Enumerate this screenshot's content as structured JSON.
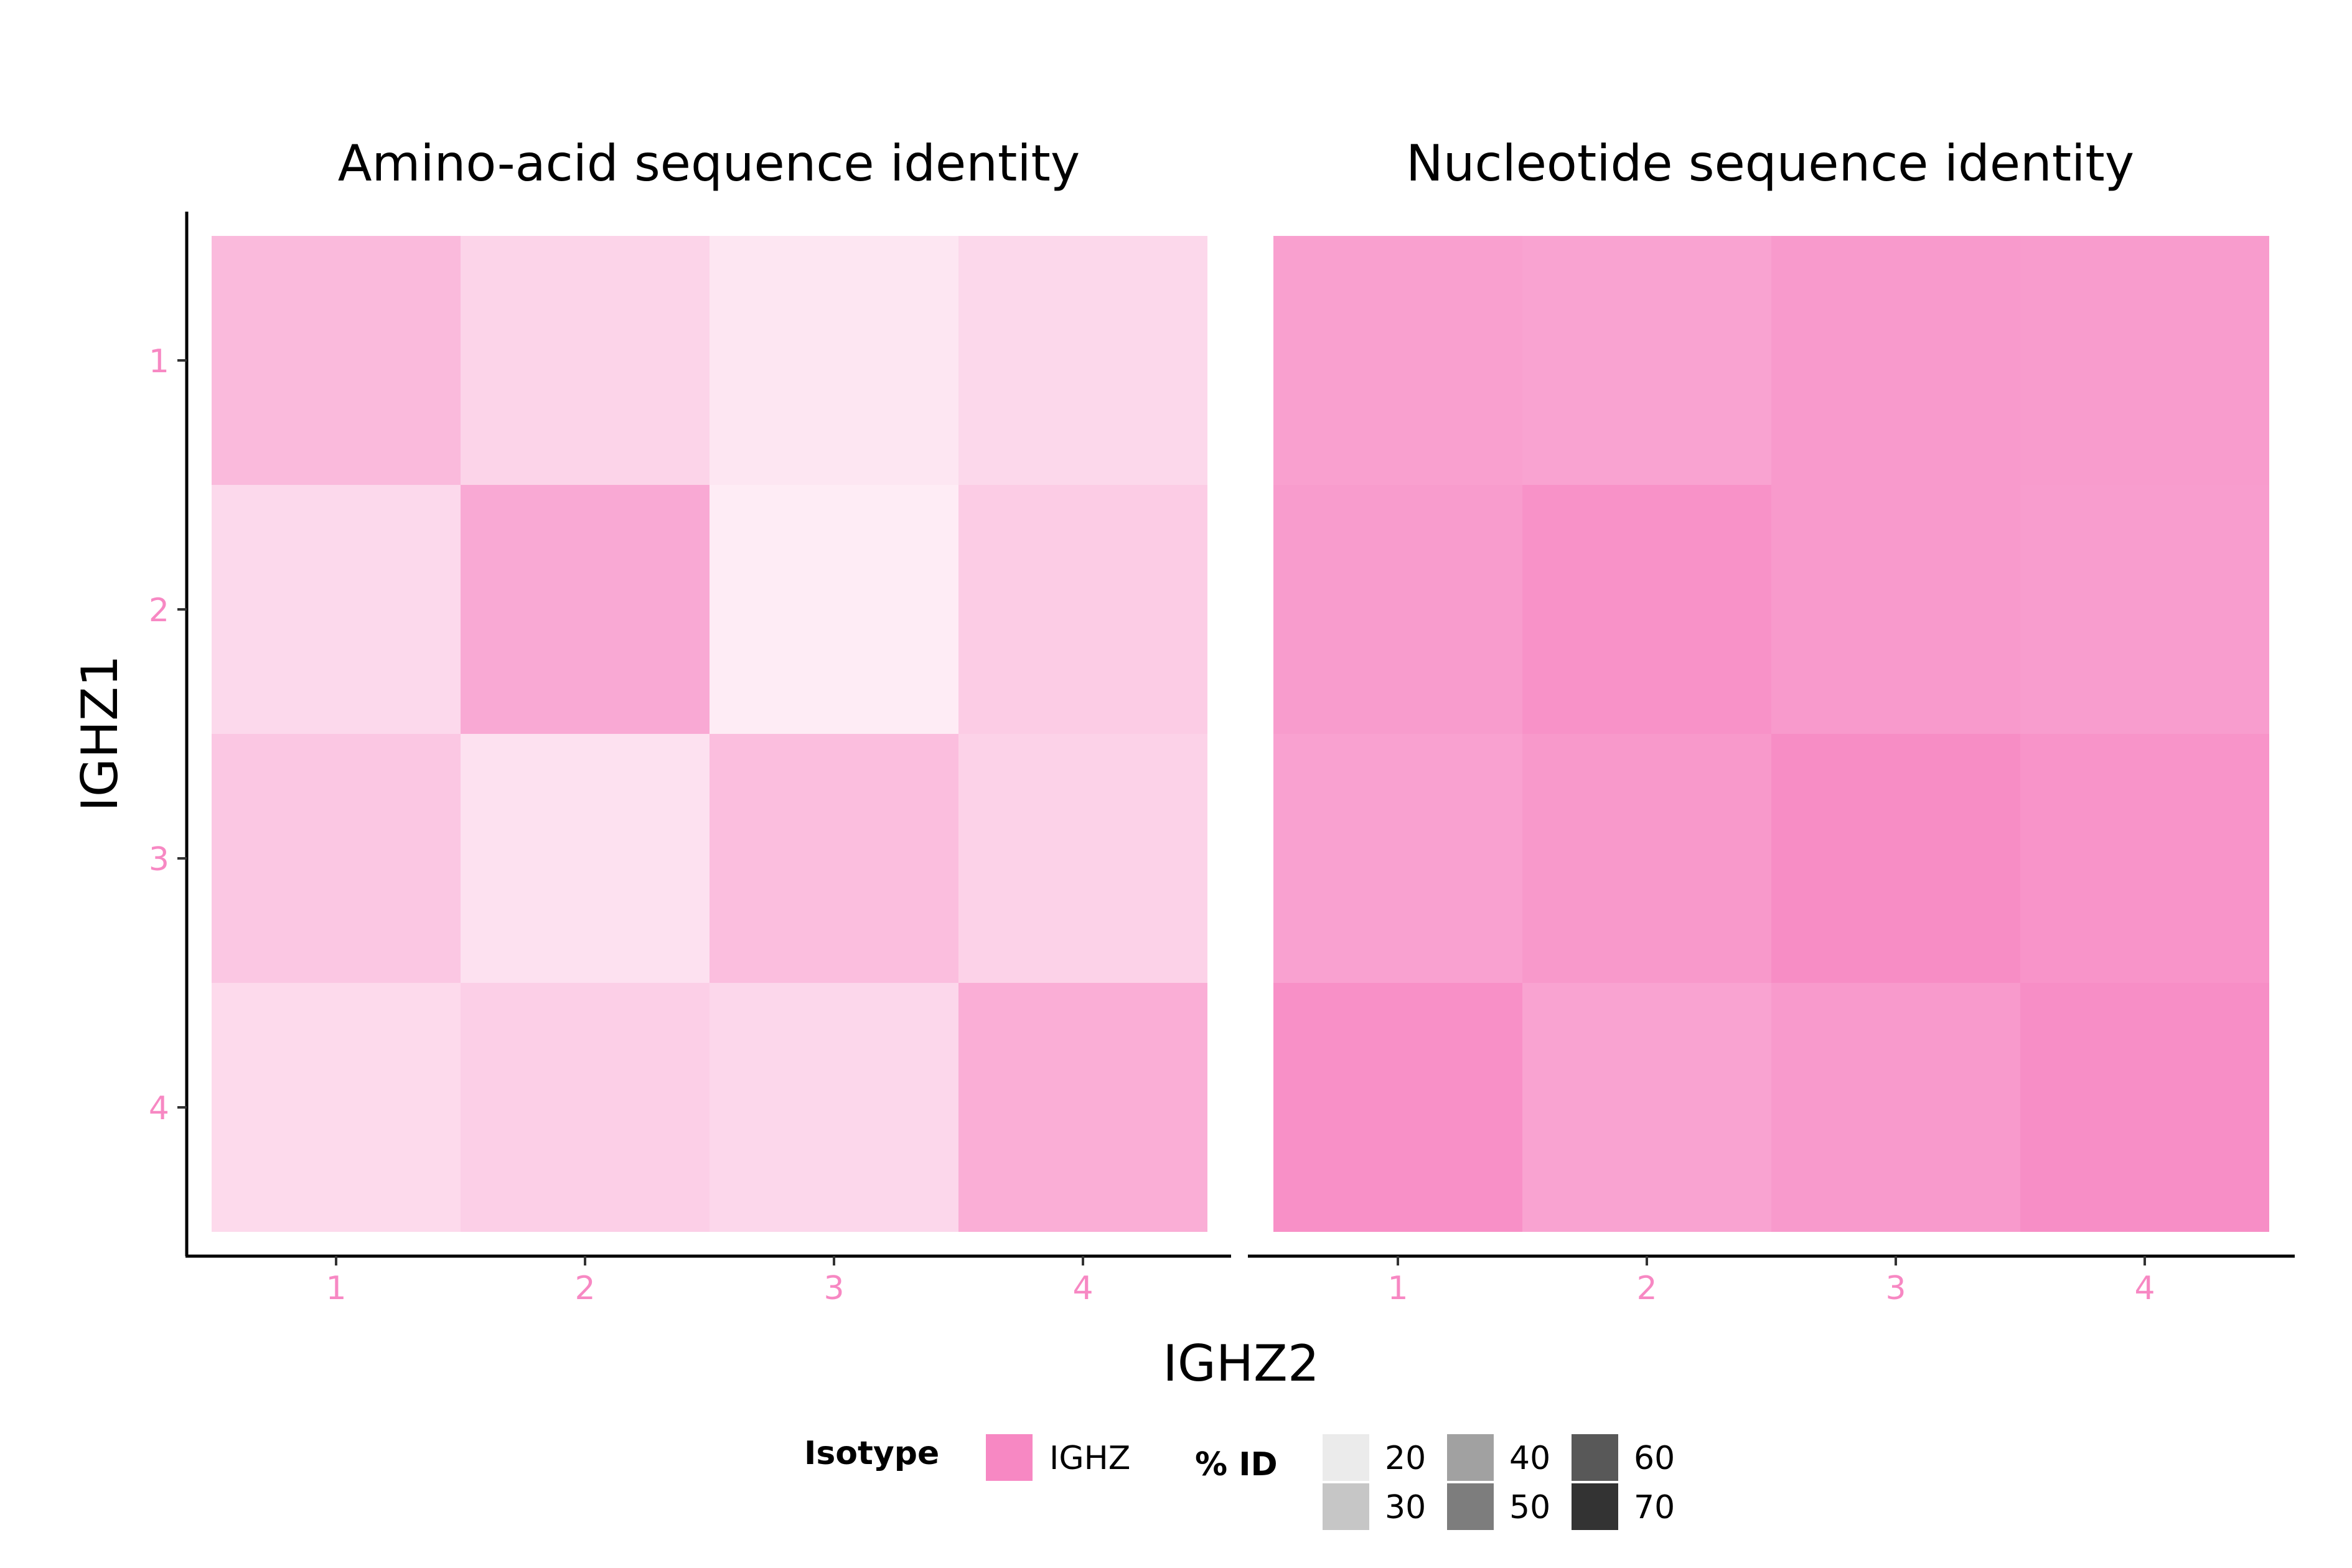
{
  "chart_data": {
    "type": "heatmap",
    "x_label": "IGHZ2",
    "y_label": "IGHZ1",
    "x_ticks": [
      "1",
      "2",
      "3",
      "4"
    ],
    "y_ticks": [
      "1",
      "2",
      "3",
      "4"
    ],
    "tick_color": "#F788C3",
    "fill_color": "#F788C3",
    "panels": [
      {
        "title": "Amino-acid sequence identity",
        "values": [
          [
            58,
            36,
            21,
            33
          ],
          [
            32,
            72,
            16,
            43
          ],
          [
            47,
            25,
            55,
            38
          ],
          [
            31,
            40,
            34,
            68
          ]
        ]
      },
      {
        "title": "Nucleotide sequence identity",
        "values": [
          [
            80,
            77,
            85,
            83
          ],
          [
            83,
            92,
            85,
            82
          ],
          [
            79,
            86,
            96,
            90
          ],
          [
            93,
            77,
            85,
            95
          ]
        ]
      }
    ],
    "legend": {
      "position": "bottom",
      "isotype": {
        "title": "Isotype",
        "entries": [
          {
            "label": "IGHZ",
            "color": "#F788C3"
          }
        ]
      },
      "identity": {
        "title": "% ID",
        "entries": [
          {
            "label": "20",
            "value": 20
          },
          {
            "label": "30",
            "value": 30
          },
          {
            "label": "40",
            "value": 40
          },
          {
            "label": "50",
            "value": 50
          },
          {
            "label": "60",
            "value": 60
          },
          {
            "label": "70",
            "value": 70
          }
        ]
      }
    }
  }
}
